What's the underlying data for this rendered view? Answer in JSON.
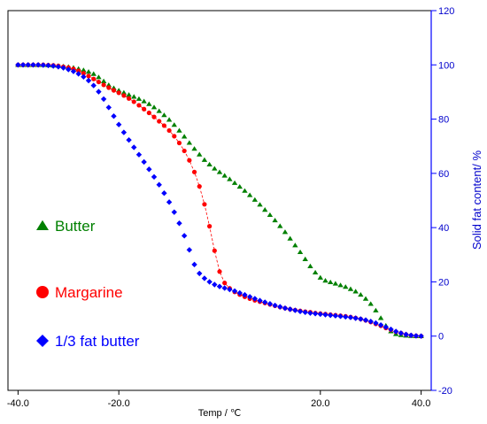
{
  "chart_data": {
    "type": "scatter",
    "xlabel": "Temp / ℃",
    "ylabel": "Solid fat content/ %",
    "xlim": [
      -42,
      42
    ],
    "ylim": [
      -20,
      120
    ],
    "x_ticks": [
      -40,
      -20,
      20,
      40
    ],
    "x_tick_labels": [
      "-40.0",
      "-20.0",
      "20.0",
      "40.0"
    ],
    "y_ticks": [
      -20,
      0,
      20,
      40,
      60,
      80,
      100,
      120
    ],
    "y_tick_labels": [
      "-20",
      "0",
      "20",
      "40",
      "60",
      "80",
      "100",
      "120"
    ],
    "y_axis_side": "right",
    "grid": false,
    "legend": "inside-left",
    "series": [
      {
        "name": "Butter",
        "marker": "triangle",
        "color": "#008000",
        "x": [
          -40,
          -39,
          -38,
          -37,
          -36,
          -35,
          -34,
          -33,
          -32,
          -31,
          -30,
          -29,
          -28,
          -27,
          -26,
          -25,
          -24,
          -23,
          -22,
          -21,
          -20,
          -19,
          -18,
          -17,
          -16,
          -15,
          -14,
          -13,
          -12,
          -11,
          -10,
          -9,
          -8,
          -7,
          -6,
          -5,
          -4,
          -3,
          -2,
          -1,
          0,
          1,
          2,
          3,
          4,
          5,
          6,
          7,
          8,
          9,
          10,
          11,
          12,
          13,
          14,
          15,
          16,
          17,
          18,
          19,
          20,
          21,
          22,
          23,
          24,
          25,
          26,
          27,
          28,
          29,
          30,
          31,
          32,
          33,
          34,
          35,
          36,
          37,
          38,
          39,
          40
        ],
        "y": [
          100,
          100,
          100,
          100,
          100,
          100,
          99.9,
          99.8,
          99.7,
          99.5,
          99.3,
          99,
          98.6,
          98.1,
          97.5,
          96.7,
          95.5,
          94,
          92.6,
          91.5,
          90.6,
          89.8,
          89,
          88.3,
          87.5,
          86.6,
          85.6,
          84.4,
          83,
          81.5,
          79.8,
          77.9,
          75.8,
          73.6,
          71.3,
          69.1,
          67,
          65,
          63.3,
          61.8,
          60.5,
          59.2,
          57.9,
          56.5,
          55.1,
          53.6,
          52,
          50.3,
          48.5,
          46.6,
          44.7,
          42.7,
          40.6,
          38.4,
          36,
          33.5,
          31,
          28.4,
          25.8,
          23.5,
          21.6,
          20.5,
          19.9,
          19.4,
          18.8,
          18.2,
          17.4,
          16.5,
          15.3,
          13.8,
          11.9,
          9.5,
          6.7,
          3.9,
          1.8,
          0.8,
          0.4,
          0.2,
          0.1,
          0,
          0
        ]
      },
      {
        "name": "Margarine",
        "marker": "circle",
        "color": "#ff0000",
        "x": [
          -40,
          -39,
          -38,
          -37,
          -36,
          -35,
          -34,
          -33,
          -32,
          -31,
          -30,
          -29,
          -28,
          -27,
          -26,
          -25,
          -24,
          -23,
          -22,
          -21,
          -20,
          -19,
          -18,
          -17,
          -16,
          -15,
          -14,
          -13,
          -12,
          -11,
          -10,
          -9,
          -8,
          -7,
          -6,
          -5,
          -4,
          -3,
          -2,
          -1,
          0,
          1,
          2,
          3,
          4,
          5,
          6,
          7,
          8,
          9,
          10,
          11,
          12,
          13,
          14,
          15,
          16,
          17,
          18,
          19,
          20,
          21,
          22,
          23,
          24,
          25,
          26,
          27,
          28,
          29,
          30,
          31,
          32,
          33,
          34,
          35,
          36,
          37,
          38,
          39,
          40
        ],
        "y": [
          100,
          100,
          100,
          100,
          100,
          100,
          99.9,
          99.8,
          99.6,
          99.3,
          99,
          98.5,
          97.8,
          96.9,
          95.9,
          94.8,
          93.7,
          92.6,
          91.6,
          90.6,
          89.7,
          88.7,
          87.6,
          86.4,
          85.1,
          83.7,
          82.3,
          80.8,
          79.2,
          77.6,
          75.8,
          73.7,
          71.2,
          68.3,
          64.8,
          60.5,
          55.2,
          48.6,
          40.5,
          31.5,
          23.8,
          19.6,
          17.6,
          16.3,
          15.3,
          14.5,
          13.8,
          13.2,
          12.7,
          12.2,
          11.7,
          11.2,
          10.7,
          10.3,
          9.9,
          9.6,
          9.3,
          9,
          8.8,
          8.5,
          8.3,
          8.1,
          7.9,
          7.7,
          7.5,
          7.3,
          7,
          6.7,
          6.3,
          5.8,
          5.2,
          4.5,
          3.8,
          3,
          2.3,
          1.6,
          1.1,
          0.6,
          0.3,
          0.1,
          0
        ]
      },
      {
        "name": "1/3 fat butter",
        "marker": "diamond",
        "color": "#0000ff",
        "x": [
          -40,
          -39,
          -38,
          -37,
          -36,
          -35,
          -34,
          -33,
          -32,
          -31,
          -30,
          -29,
          -28,
          -27,
          -26,
          -25,
          -24,
          -23,
          -22,
          -21,
          -20,
          -19,
          -18,
          -17,
          -16,
          -15,
          -14,
          -13,
          -12,
          -11,
          -10,
          -9,
          -8,
          -7,
          -6,
          -5,
          -4,
          -3,
          -2,
          -1,
          0,
          1,
          2,
          3,
          4,
          5,
          6,
          7,
          8,
          9,
          10,
          11,
          12,
          13,
          14,
          15,
          16,
          17,
          18,
          19,
          20,
          21,
          22,
          23,
          24,
          25,
          26,
          27,
          28,
          29,
          30,
          31,
          32,
          33,
          34,
          35,
          36,
          37,
          38,
          39,
          40
        ],
        "y": [
          100,
          100,
          100,
          100,
          100,
          99.9,
          99.8,
          99.6,
          99.3,
          98.9,
          98.3,
          97.6,
          96.7,
          95.6,
          94.2,
          92.4,
          90.1,
          87.4,
          84.3,
          81.1,
          78,
          75.1,
          72.3,
          69.6,
          66.9,
          64.2,
          61.5,
          58.7,
          55.8,
          52.7,
          49.4,
          45.7,
          41.6,
          37,
          31.8,
          26.4,
          23.1,
          21.3,
          20,
          19,
          18.3,
          17.7,
          17.2,
          16.6,
          15.9,
          15.2,
          14.5,
          13.8,
          13.1,
          12.5,
          11.9,
          11.3,
          10.8,
          10.3,
          9.9,
          9.5,
          9.1,
          8.8,
          8.5,
          8.3,
          8.1,
          7.9,
          7.7,
          7.5,
          7.3,
          7.1,
          6.9,
          6.6,
          6.3,
          5.9,
          5.4,
          4.8,
          4.1,
          3.3,
          2.5,
          1.7,
          1.1,
          0.6,
          0.3,
          0.1,
          0
        ]
      }
    ]
  }
}
